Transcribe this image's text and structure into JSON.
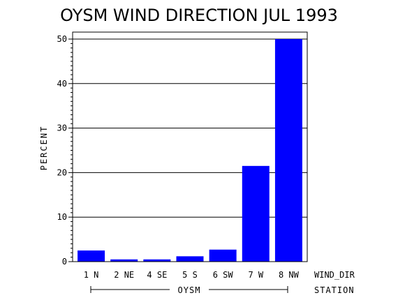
{
  "chart_data": {
    "type": "bar",
    "title": "OYSM WIND DIRECTION JUL 1993",
    "ylabel": "PERCENT",
    "xlabel": "WIND_DIR",
    "group_label": "OYSM",
    "group_axis_label": "STATION",
    "categories": [
      "1 N",
      "2 NE",
      "4 SE",
      "5 S",
      "6 SW",
      "7 W",
      "8 NW"
    ],
    "values": [
      2.5,
      0.5,
      0.5,
      1.2,
      2.7,
      21.5,
      50.0
    ],
    "ylim": [
      0,
      50
    ],
    "yticks": [
      "0",
      "10",
      "20",
      "30",
      "40",
      "50"
    ],
    "grid": true,
    "bar_color": "#0000ff"
  }
}
